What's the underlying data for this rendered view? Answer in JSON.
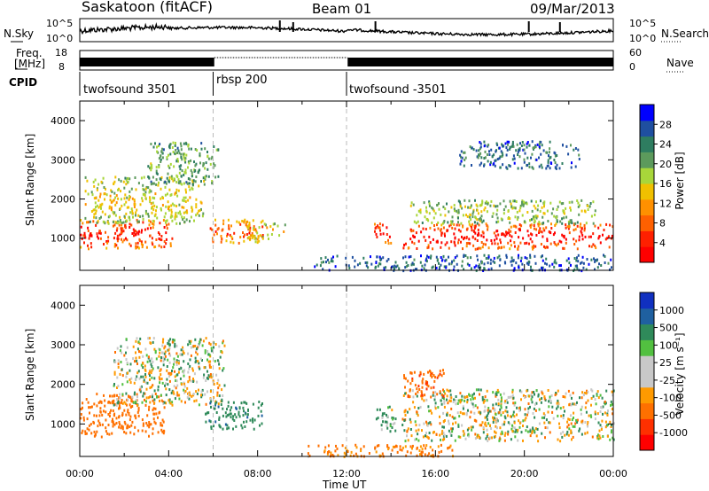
{
  "header": {
    "station": "Saskatoon (fitACF)",
    "beam": "Beam 01",
    "date": "09/Mar/2013"
  },
  "noise_panel": {
    "left_label": "N.Sky",
    "right_label": "N.Search",
    "left_ticks": [
      "10^5",
      "10^0"
    ],
    "right_ticks": [
      "10^5",
      "10^0"
    ]
  },
  "freq_panel": {
    "left_label_1": "Freq.",
    "left_label_2": "[MHz]",
    "right_label": "Nave",
    "left_ticks": [
      "18",
      "8"
    ],
    "right_ticks": [
      "60",
      "0"
    ]
  },
  "cpid": {
    "label": "CPID",
    "segments": [
      {
        "name": "twofsound 3501",
        "start_hour": 0,
        "end_hour": 6
      },
      {
        "name": "rbsp 200",
        "start_hour": 6,
        "end_hour": 12
      },
      {
        "name": "twofsound -3501",
        "start_hour": 12,
        "end_hour": 24
      }
    ]
  },
  "x_axis": {
    "label": "Time UT",
    "ticks": [
      "00:00",
      "04:00",
      "08:00",
      "12:00",
      "16:00",
      "20:00",
      "00:00"
    ]
  },
  "chart_data": [
    {
      "type": "heatmap",
      "title": "",
      "xlabel": "Time UT",
      "ylabel": "Slant Range [km]",
      "xlim": [
        0,
        24
      ],
      "ylim": [
        180,
        4500
      ],
      "y_ticks": [
        "1000",
        "2000",
        "3000",
        "4000"
      ],
      "colorbar": {
        "label": "Power [dB]",
        "ticks": [
          "4",
          "8",
          "12",
          "16",
          "20",
          "24",
          "28"
        ],
        "colors": [
          "#0000ff",
          "#1f4fa0",
          "#2e7d60",
          "#5c9a5c",
          "#a8d63a",
          "#f0c000",
          "#ff9000",
          "#ff6000",
          "#ff2000",
          "#ff0000"
        ]
      },
      "regions": [
        {
          "x": [
            0.0,
            4.2
          ],
          "y": [
            750,
            1500
          ],
          "level": 0.9
        },
        {
          "x": [
            0.2,
            5.6
          ],
          "y": [
            1400,
            2600
          ],
          "level": 0.5
        },
        {
          "x": [
            3.0,
            6.2
          ],
          "y": [
            2400,
            3500
          ],
          "level": 0.35
        },
        {
          "x": [
            5.8,
            8.4
          ],
          "y": [
            900,
            1500
          ],
          "level": 0.8
        },
        {
          "x": [
            7.5,
            9.2
          ],
          "y": [
            1000,
            1400
          ],
          "level": 0.55
        },
        {
          "x": [
            13.2,
            14.0
          ],
          "y": [
            900,
            1400
          ],
          "level": 0.95
        },
        {
          "x": [
            14.5,
            24.0
          ],
          "y": [
            750,
            1400
          ],
          "level": 0.95
        },
        {
          "x": [
            14.8,
            23.5
          ],
          "y": [
            1400,
            2000
          ],
          "level": 0.45
        },
        {
          "x": [
            10.5,
            24.0
          ],
          "y": [
            200,
            600
          ],
          "level": 0.15
        },
        {
          "x": [
            17.0,
            22.5
          ],
          "y": [
            2800,
            3500
          ],
          "level": 0.2
        }
      ]
    },
    {
      "type": "heatmap",
      "title": "",
      "xlabel": "Time UT",
      "ylabel": "Slant Range [km]",
      "xlim": [
        0,
        24
      ],
      "ylim": [
        180,
        4500
      ],
      "y_ticks": [
        "1000",
        "2000",
        "3000",
        "4000"
      ],
      "colorbar": {
        "label": "Velocity [m s⁻¹]",
        "ticks": [
          "1000",
          "500",
          "100",
          "25",
          "-25",
          "-100",
          "-500",
          "-1000"
        ],
        "colors": [
          "#1030c0",
          "#1f60a0",
          "#2f8a5a",
          "#52c040",
          "#c8c8c8",
          "#c8c8c8",
          "#ff9a00",
          "#ff7000",
          "#ff3000",
          "#ff0000"
        ]
      },
      "regions": [
        {
          "x": [
            0.0,
            3.8
          ],
          "y": [
            700,
            1800
          ],
          "velocity": -300
        },
        {
          "x": [
            1.5,
            6.5
          ],
          "y": [
            1500,
            3200
          ],
          "velocity": 0
        },
        {
          "x": [
            5.5,
            8.2
          ],
          "y": [
            900,
            1600
          ],
          "velocity": 200
        },
        {
          "x": [
            13.3,
            14.2
          ],
          "y": [
            800,
            1500
          ],
          "velocity": 80
        },
        {
          "x": [
            14.4,
            24.0
          ],
          "y": [
            600,
            1900
          ],
          "velocity": 0
        },
        {
          "x": [
            14.5,
            16.5
          ],
          "y": [
            1700,
            2400
          ],
          "velocity": -400
        },
        {
          "x": [
            10.0,
            17.0
          ],
          "y": [
            200,
            500
          ],
          "velocity": -150
        }
      ]
    }
  ]
}
